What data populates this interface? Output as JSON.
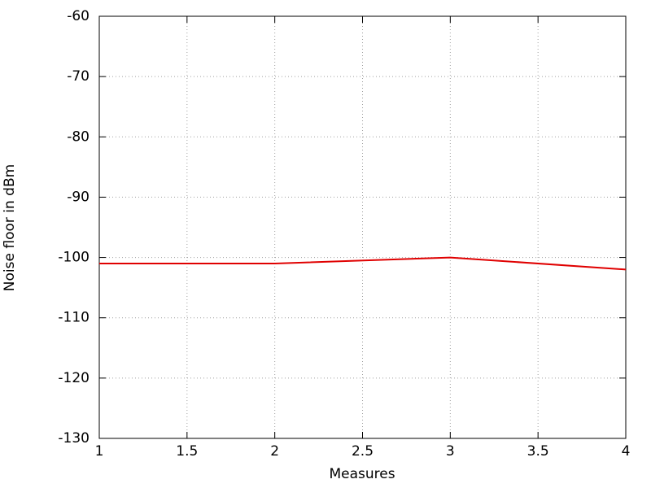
{
  "chart_data": {
    "type": "line",
    "x_label": "Measures",
    "y_label": "Noise floor in dBm",
    "x": [
      1,
      2,
      3,
      4
    ],
    "values": [
      -101,
      -101,
      -100,
      -102
    ],
    "color": "#e00000",
    "xlim": [
      1,
      4
    ],
    "xticks": [
      1,
      1.5,
      2,
      2.5,
      3,
      3.5,
      4
    ],
    "ylim": [
      -130,
      -60
    ],
    "yticks": [
      -130,
      -120,
      -110,
      -100,
      -90,
      -80,
      -70,
      -60
    ],
    "grid": true
  }
}
